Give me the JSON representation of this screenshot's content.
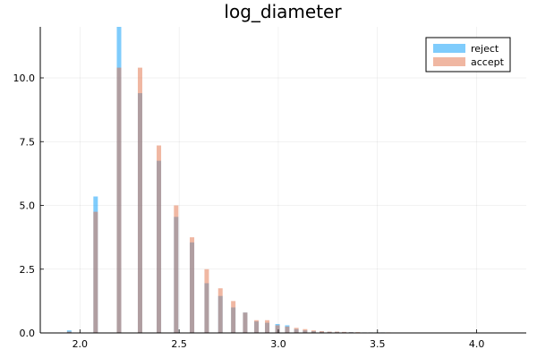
{
  "chart_data": {
    "type": "bar",
    "title": "log_diameter",
    "xlabel": "",
    "ylabel": "",
    "xlim": [
      1.8,
      4.25
    ],
    "ylim": [
      0,
      12
    ],
    "grid": true,
    "legend_position": "top-right",
    "x_ticks": [
      2.0,
      2.5,
      3.0,
      3.5,
      4.0
    ],
    "x_tick_labels": [
      "2.0",
      "2.5",
      "3.0",
      "3.5",
      "4.0"
    ],
    "y_ticks": [
      0,
      2.5,
      5.0,
      7.5,
      10.0
    ],
    "y_tick_labels": [
      "0.0",
      "2.5",
      "5.0",
      "7.5",
      "10.0"
    ],
    "x": [
      1.946,
      2.079,
      2.197,
      2.303,
      2.398,
      2.485,
      2.565,
      2.639,
      2.708,
      2.773,
      2.833,
      2.89,
      2.944,
      2.996,
      3.045,
      3.091,
      3.135,
      3.178,
      3.219,
      3.258,
      3.296,
      3.332,
      3.367,
      3.401,
      3.434,
      3.466,
      3.497,
      3.526,
      3.555,
      3.584,
      3.611,
      3.638,
      3.664,
      3.689,
      3.714,
      3.738,
      3.761,
      3.784,
      3.807,
      3.829,
      3.85,
      3.871,
      3.892,
      3.912,
      3.932,
      3.951,
      3.97,
      3.989,
      4.007,
      4.025
    ],
    "series": [
      {
        "name": "reject",
        "color": "#009AFA",
        "values": [
          0.1,
          5.35,
          12.0,
          9.4,
          6.75,
          4.55,
          3.55,
          1.95,
          1.45,
          1.0,
          0.8,
          0.45,
          0.4,
          0.35,
          0.3,
          0.15,
          0.1,
          0.07,
          0.05,
          0.04,
          0.04,
          0.03,
          0.03,
          0.02,
          0.02,
          0.02,
          0.02,
          0.02,
          0.01,
          0.01,
          0.01,
          0.01,
          0.01,
          0.01,
          0.01,
          0.01,
          0.01,
          0.01,
          0.01,
          0.01,
          0.01,
          0.01,
          0.01,
          0.01,
          0.01,
          0.01,
          0.01,
          0.01,
          0.01,
          0.01
        ]
      },
      {
        "name": "accept",
        "color": "#E26F46",
        "values": [
          0.05,
          4.75,
          10.4,
          10.4,
          7.35,
          5.0,
          3.75,
          2.5,
          1.75,
          1.25,
          0.8,
          0.5,
          0.5,
          0.3,
          0.25,
          0.2,
          0.15,
          0.1,
          0.07,
          0.05,
          0.05,
          0.04,
          0.03,
          0.03,
          0.02,
          0.02,
          0.02,
          0.02,
          0.02,
          0.01,
          0.01,
          0.01,
          0.01,
          0.01,
          0.01,
          0.01,
          0.01,
          0.01,
          0.01,
          0.01,
          0.01,
          0.01,
          0.01,
          0.01,
          0.01,
          0.01,
          0.01,
          0.01,
          0.01,
          0.01
        ]
      }
    ]
  }
}
